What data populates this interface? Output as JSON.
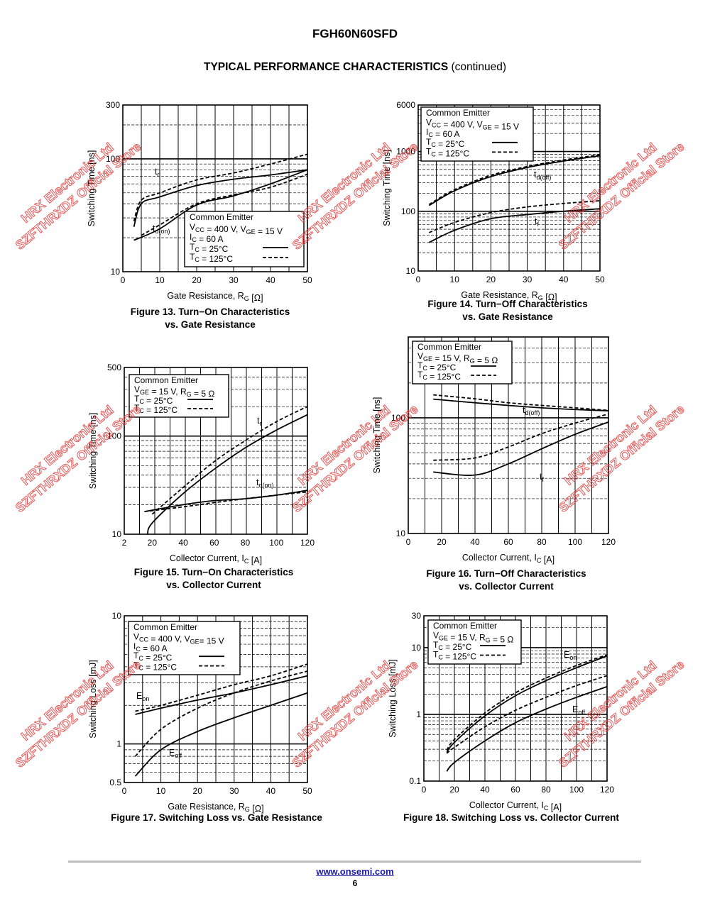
{
  "header": {
    "part_number": "FGH60N60SFD",
    "section_title": "TYPICAL PERFORMANCE CHARACTERISTICS",
    "section_suffix": "(continued)"
  },
  "footer": {
    "url": "www.onsemi.com",
    "page": "6"
  },
  "watermark": {
    "line1": "HRX Electronic Ltd",
    "line2": "SZFTHRXDZ Official Store"
  },
  "figures": [
    {
      "caption_line1": "Figure 13. Turn−On Characteristics",
      "caption_line2": "vs. Gate Resistance"
    },
    {
      "caption_line1": "Figure 14. Turn−Off Characteristics",
      "caption_line2": "vs. Gate Resistance"
    },
    {
      "caption_line1": "Figure 15. Turn−On Characteristics",
      "caption_line2": "vs. Collector Current"
    },
    {
      "caption_line1": "Figure 16. Turn−Off Characteristics",
      "caption_line2": "vs. Collector Current"
    },
    {
      "caption_line1": "Figure 17. Switching Loss vs. Gate Resistance",
      "caption_line2": ""
    },
    {
      "caption_line1": "Figure 18. Switching Loss vs. Collector Current",
      "caption_line2": ""
    }
  ],
  "chart_data": [
    {
      "type": "line",
      "xlabel": "Gate Resistance, R_G [Ω]",
      "ylabel": "Switching Time [ns]",
      "xlim": [
        0,
        50
      ],
      "ylim": [
        10,
        300
      ],
      "yscale": "log",
      "xticks": [
        0,
        10,
        20,
        30,
        40,
        50
      ],
      "yticks": [
        10,
        100,
        300
      ],
      "legend": [
        "Common Emitter",
        "V_CC = 400 V, V_GE = 15 V",
        "I_C = 60 A",
        "T_C = 25°C",
        "T_C = 125°C"
      ],
      "legend_position": "bottom-right",
      "series": [
        {
          "label": "t_r",
          "temp": "25",
          "x": [
            3,
            5,
            10,
            20,
            30,
            40,
            50
          ],
          "y": [
            25,
            40,
            46,
            58,
            66,
            72,
            80
          ]
        },
        {
          "label": "t_r",
          "temp": "125",
          "x": [
            3,
            5,
            10,
            20,
            30,
            40,
            50
          ],
          "y": [
            28,
            43,
            50,
            65,
            75,
            90,
            110
          ]
        },
        {
          "label": "t_d(on)",
          "temp": "25",
          "x": [
            3,
            10,
            20,
            30,
            40,
            50
          ],
          "y": [
            19,
            24,
            39,
            47,
            60,
            80
          ]
        },
        {
          "label": "t_d(on)",
          "temp": "125",
          "x": [
            5,
            10,
            20,
            30,
            40,
            50
          ],
          "y": [
            21,
            26,
            40,
            48,
            56,
            73
          ]
        }
      ]
    },
    {
      "type": "line",
      "xlabel": "Gate Resistance, R_G [Ω]",
      "ylabel": "Switching Time [ns]",
      "xlim": [
        0,
        50
      ],
      "ylim": [
        10,
        6000
      ],
      "yscale": "log",
      "xticks": [
        0,
        10,
        20,
        30,
        40,
        50
      ],
      "yticks": [
        10,
        100,
        1000,
        6000
      ],
      "legend": [
        "Common Emitter",
        "V_CC = 400 V, V_GE = 15 V",
        "I_C = 60 A",
        "T_C = 25°C",
        "T_C = 125°C"
      ],
      "legend_position": "top-left",
      "series": [
        {
          "label": "t_d(off)",
          "temp": "25",
          "x": [
            3,
            10,
            20,
            30,
            40,
            50
          ],
          "y": [
            125,
            220,
            380,
            540,
            690,
            850
          ]
        },
        {
          "label": "t_d(off)",
          "temp": "125",
          "x": [
            3,
            10,
            20,
            30,
            40,
            50
          ],
          "y": [
            130,
            230,
            400,
            560,
            720,
            880
          ]
        },
        {
          "label": "t_f",
          "temp": "25",
          "x": [
            3,
            10,
            20,
            30,
            40,
            50
          ],
          "y": [
            30,
            48,
            75,
            88,
            100,
            110
          ]
        },
        {
          "label": "t_f",
          "temp": "125",
          "x": [
            3,
            10,
            20,
            30,
            40,
            50
          ],
          "y": [
            44,
            65,
            95,
            118,
            135,
            150
          ]
        }
      ]
    },
    {
      "type": "line",
      "xlabel": "Collector Current, I_C [A]",
      "ylabel": "Switching Time [ns]",
      "xlim": [
        2,
        120
      ],
      "ylim": [
        10,
        500
      ],
      "yscale": "log",
      "xticks": [
        2,
        20,
        40,
        60,
        80,
        100,
        120
      ],
      "yticks": [
        10,
        100,
        500
      ],
      "legend": [
        "Common Emitter",
        "V_GE = 15 V, R_G = 5 Ω",
        "T_C = 25°C",
        "T_C = 125°C"
      ],
      "legend_position": "top-left",
      "series": [
        {
          "label": "t_r",
          "temp": "25",
          "x": [
            17,
            20,
            40,
            60,
            80,
            100,
            120
          ],
          "y": [
            10,
            13,
            26,
            46,
            76,
            115,
            165
          ]
        },
        {
          "label": "t_r",
          "temp": "125",
          "x": [
            20,
            40,
            60,
            80,
            100,
            120
          ],
          "y": [
            16,
            30,
            55,
            90,
            140,
            200
          ]
        },
        {
          "label": "t_d(on)",
          "temp": "25",
          "x": [
            15,
            40,
            60,
            80,
            100,
            120
          ],
          "y": [
            17,
            20,
            22,
            23,
            25,
            28
          ]
        },
        {
          "label": "t_d(on)",
          "temp": "125",
          "x": [
            15,
            40,
            60,
            80,
            100,
            120
          ],
          "y": [
            17,
            19,
            21,
            23,
            25,
            27
          ]
        }
      ]
    },
    {
      "type": "line",
      "xlabel": "Collector Current, I_C [A]",
      "ylabel": "Switching Time [ns]",
      "xlim": [
        0,
        120
      ],
      "ylim": [
        10,
        500
      ],
      "yscale": "log",
      "xticks": [
        0,
        20,
        40,
        60,
        80,
        100,
        120
      ],
      "yticks": [
        10,
        100
      ],
      "legend": [
        "Common Emitter",
        "V_GE = 15 V, R_G = 5 Ω",
        "T_C = 25°C",
        "T_C = 125°C"
      ],
      "legend_position": "top-left",
      "series": [
        {
          "label": "t_d(off)",
          "temp": "25",
          "x": [
            15,
            40,
            60,
            80,
            100,
            120
          ],
          "y": [
            145,
            135,
            128,
            122,
            118,
            115
          ]
        },
        {
          "label": "t_d(off)",
          "temp": "125",
          "x": [
            15,
            40,
            60,
            80,
            100,
            120
          ],
          "y": [
            158,
            146,
            135,
            128,
            122,
            116
          ]
        },
        {
          "label": "t_f",
          "temp": "25",
          "x": [
            15,
            40,
            60,
            80,
            100,
            120
          ],
          "y": [
            34,
            32,
            40,
            54,
            72,
            92
          ]
        },
        {
          "label": "t_f",
          "temp": "125",
          "x": [
            15,
            40,
            60,
            80,
            100,
            120
          ],
          "y": [
            43,
            45,
            56,
            73,
            90,
            108
          ]
        }
      ]
    },
    {
      "type": "line",
      "xlabel": "Gate Resistance, R_G [Ω]",
      "ylabel": "Switching Loss [mJ]",
      "xlim": [
        0,
        50
      ],
      "ylim": [
        0.5,
        10
      ],
      "yscale": "log",
      "xticks": [
        0,
        10,
        20,
        30,
        40,
        50
      ],
      "yticks": [
        0.5,
        1,
        10
      ],
      "legend": [
        "Common Emitter",
        "V_CC = 400 V, V_GE= 15 V",
        "I_C = 60 A",
        "T_C = 25°C",
        "T_C = 125°C"
      ],
      "legend_position": "top-left",
      "series": [
        {
          "label": "E_on",
          "temp": "25",
          "x": [
            3,
            10,
            20,
            30,
            40,
            50
          ],
          "y": [
            1.7,
            1.9,
            2.2,
            2.5,
            2.9,
            3.4
          ]
        },
        {
          "label": "E_on",
          "temp": "125",
          "x": [
            3,
            10,
            20,
            30,
            40,
            50
          ],
          "y": [
            1.8,
            2.0,
            2.4,
            2.9,
            3.4,
            4.2
          ]
        },
        {
          "label": "E_off",
          "temp": "25",
          "x": [
            3,
            10,
            20,
            30,
            40,
            50
          ],
          "y": [
            0.56,
            0.9,
            1.25,
            1.6,
            2.0,
            2.5
          ]
        },
        {
          "label": "E_off",
          "temp": "125",
          "x": [
            3,
            10,
            20,
            30,
            40,
            50
          ],
          "y": [
            0.8,
            1.3,
            1.9,
            2.5,
            3.1,
            3.7
          ]
        }
      ]
    },
    {
      "type": "line",
      "xlabel": "Collector Current, I_C [A]",
      "ylabel": "Switching Loss [mJ]",
      "xlim": [
        0,
        120
      ],
      "ylim": [
        0.1,
        30
      ],
      "yscale": "log",
      "xticks": [
        0,
        20,
        40,
        60,
        80,
        100,
        120
      ],
      "yticks": [
        0.1,
        1,
        10,
        30
      ],
      "legend": [
        "Common Emitter",
        "V_GE = 15 V, R_G = 5 Ω",
        "T_C = 25°C",
        "T_C = 125°C"
      ],
      "legend_position": "top-left",
      "series": [
        {
          "label": "E_on",
          "temp": "25",
          "x": [
            15,
            20,
            40,
            60,
            80,
            100,
            120
          ],
          "y": [
            0.27,
            0.38,
            0.95,
            1.9,
            3.2,
            5.0,
            7.5
          ]
        },
        {
          "label": "E_on",
          "temp": "125",
          "x": [
            15,
            20,
            40,
            60,
            80,
            100,
            120
          ],
          "y": [
            0.29,
            0.42,
            1.05,
            2.1,
            3.5,
            5.4,
            7.8
          ]
        },
        {
          "label": "E_off",
          "temp": "25",
          "x": [
            15,
            20,
            40,
            60,
            80,
            100,
            120
          ],
          "y": [
            0.14,
            0.19,
            0.4,
            0.75,
            1.2,
            1.8,
            2.6
          ]
        },
        {
          "label": "E_off",
          "temp": "125",
          "x": [
            15,
            20,
            40,
            60,
            80,
            100,
            120
          ],
          "y": [
            0.26,
            0.32,
            0.65,
            1.15,
            1.8,
            2.7,
            3.8
          ]
        }
      ]
    }
  ]
}
